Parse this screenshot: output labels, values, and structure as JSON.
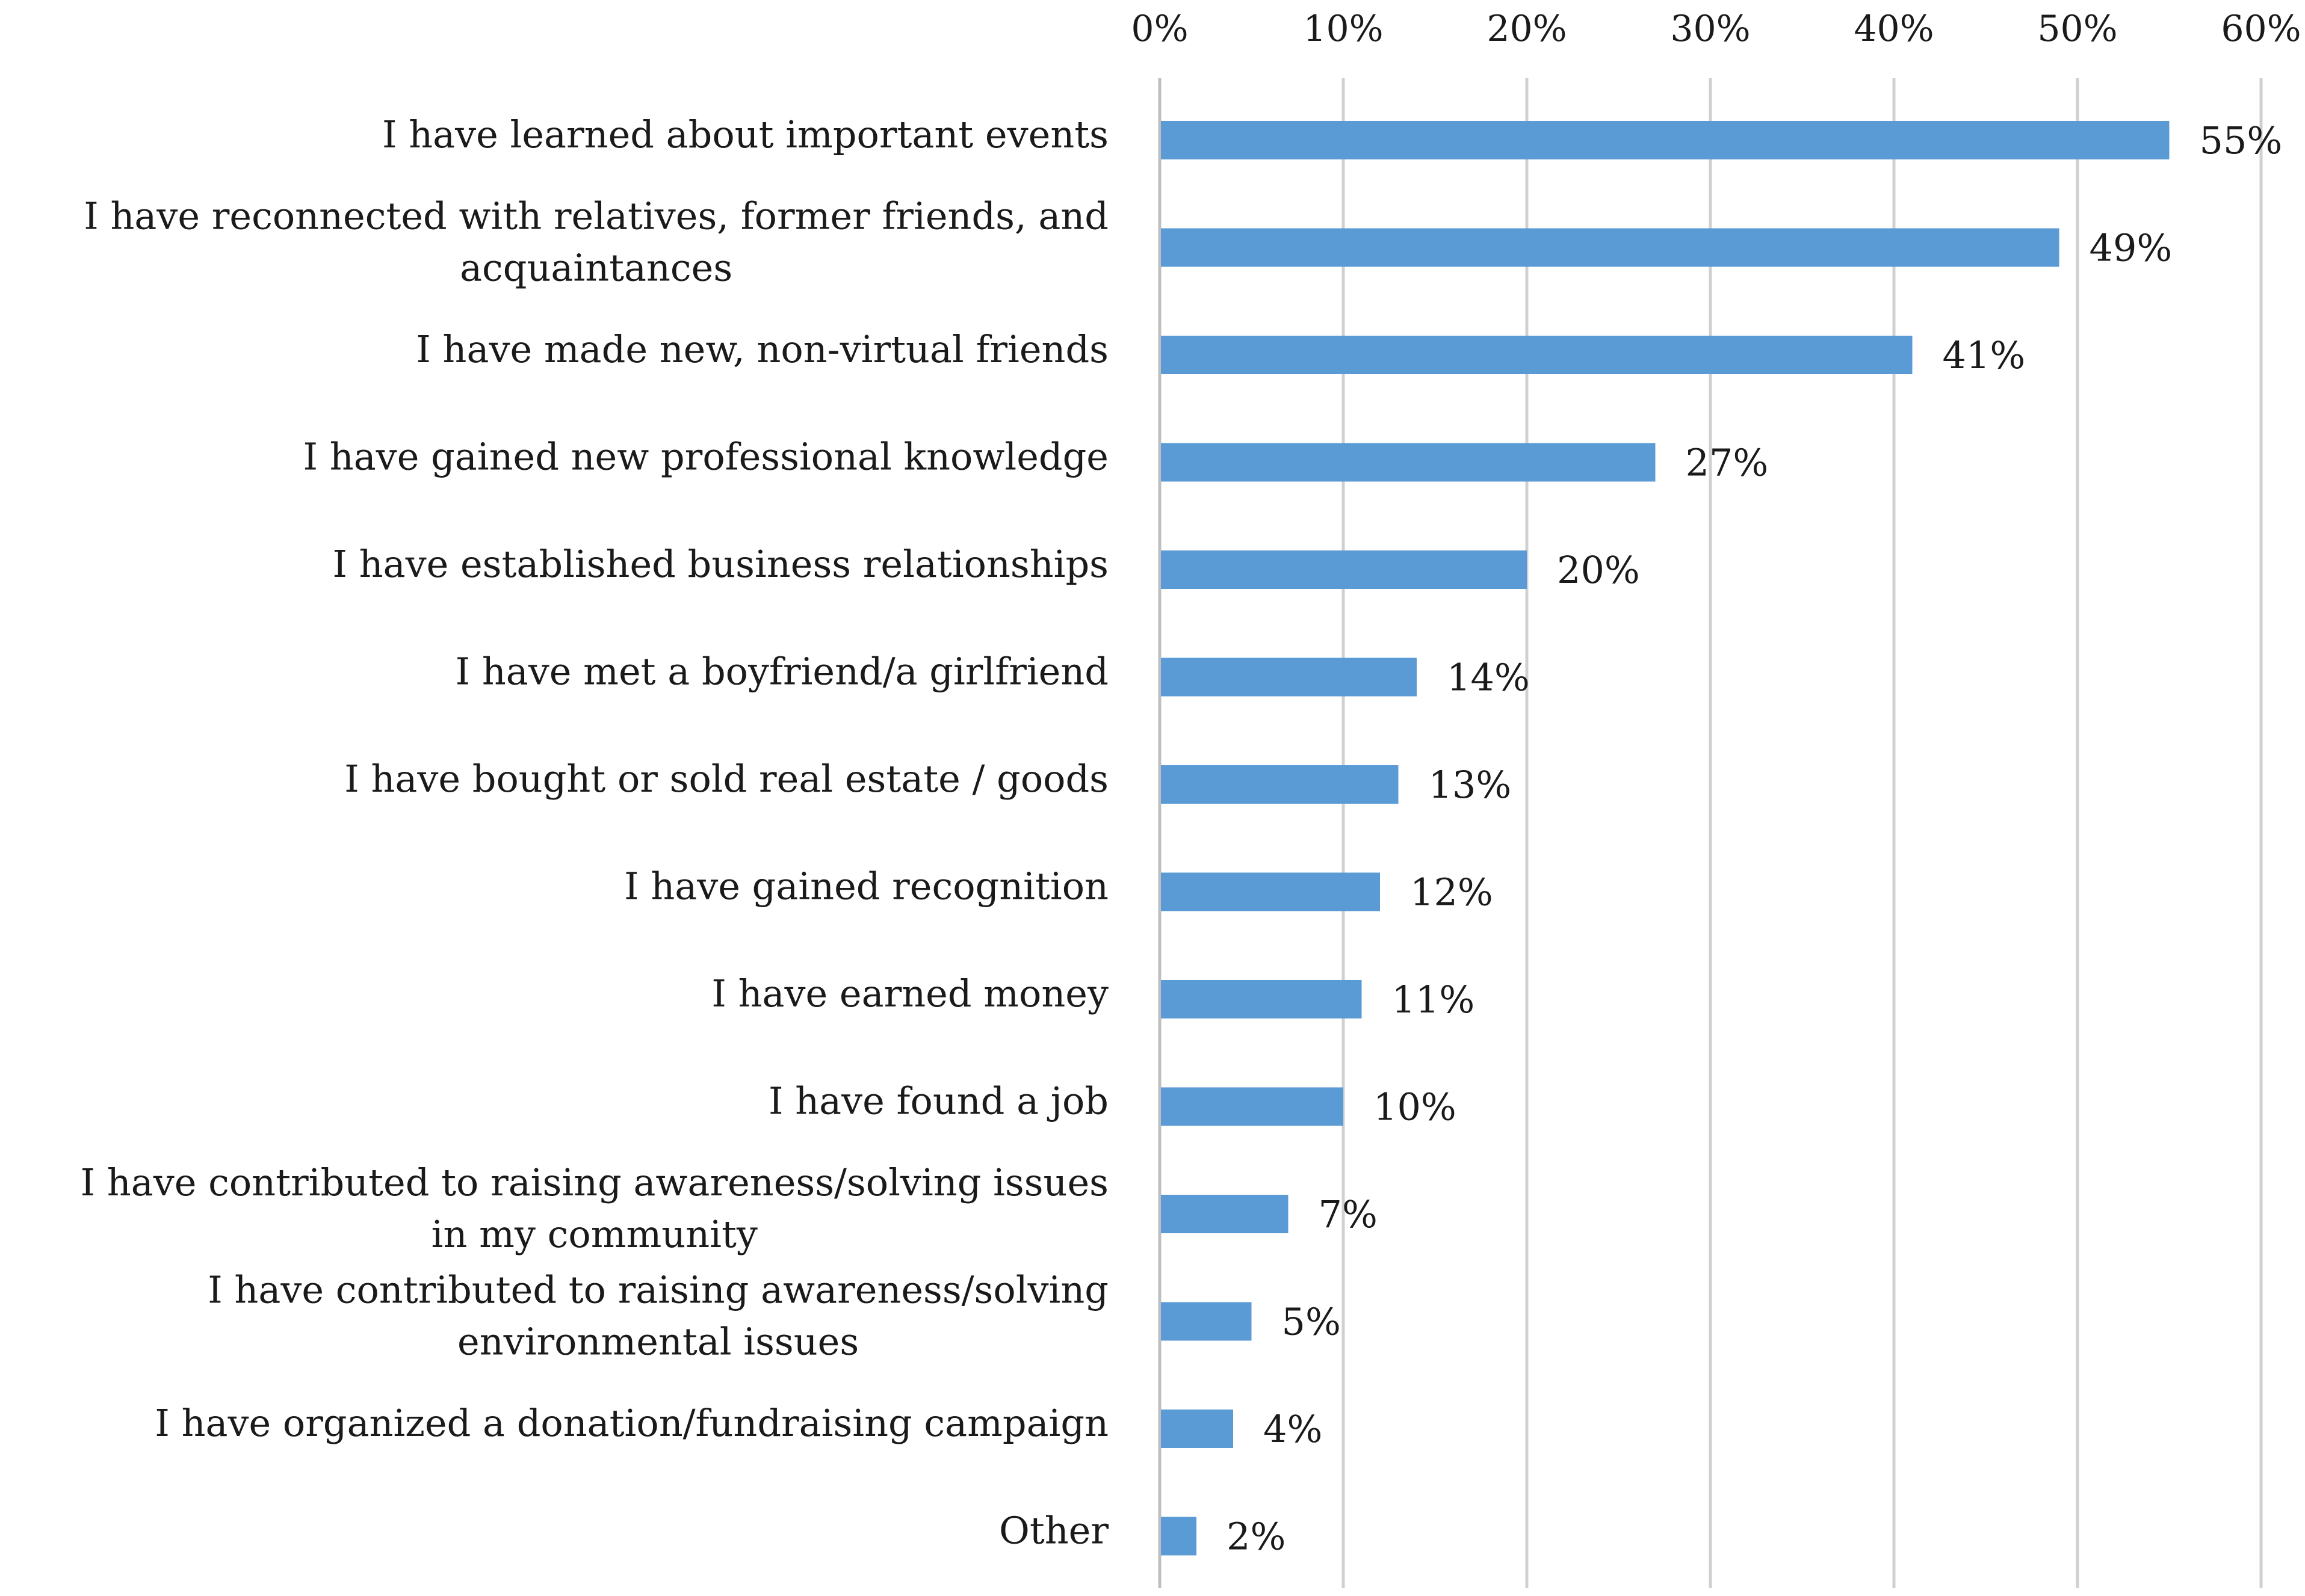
{
  "chart_data": {
    "type": "bar",
    "orientation": "horizontal",
    "title": "",
    "xlabel": "",
    "ylabel": "",
    "xlim": [
      0,
      60
    ],
    "x_ticks": [
      0,
      10,
      20,
      30,
      40,
      50,
      60
    ],
    "x_tick_labels": [
      "0%",
      "10%",
      "20%",
      "30%",
      "40%",
      "50%",
      "60%"
    ],
    "x_axis_position": "top",
    "grid": true,
    "bar_color": "#5b9bd5",
    "categories": [
      [
        "I have learned about important events"
      ],
      [
        "I have reconnected with relatives, former friends, and",
        "acquaintances"
      ],
      [
        "I have made new, non-virtual friends"
      ],
      [
        "I have gained new professional knowledge"
      ],
      [
        "I have established business relationships"
      ],
      [
        "I have met a boyfriend/a girlfriend"
      ],
      [
        "I have bought or sold real estate / goods"
      ],
      [
        "I have gained recognition"
      ],
      [
        "I have earned money"
      ],
      [
        "I have found a job"
      ],
      [
        "I have contributed to raising awareness/solving issues",
        "in my community"
      ],
      [
        "I have contributed to raising awareness/solving",
        "environmental issues"
      ],
      [
        "I have organized a donation/fundraising campaign"
      ],
      [
        "Other"
      ]
    ],
    "values": [
      55,
      49,
      41,
      27,
      20,
      14,
      13,
      12,
      11,
      10,
      7,
      5,
      4,
      2
    ],
    "value_labels": [
      "55%",
      "49%",
      "41%",
      "27%",
      "20%",
      "14%",
      "13%",
      "12%",
      "11%",
      "10%",
      "7%",
      "5%",
      "4%",
      "2%"
    ]
  }
}
